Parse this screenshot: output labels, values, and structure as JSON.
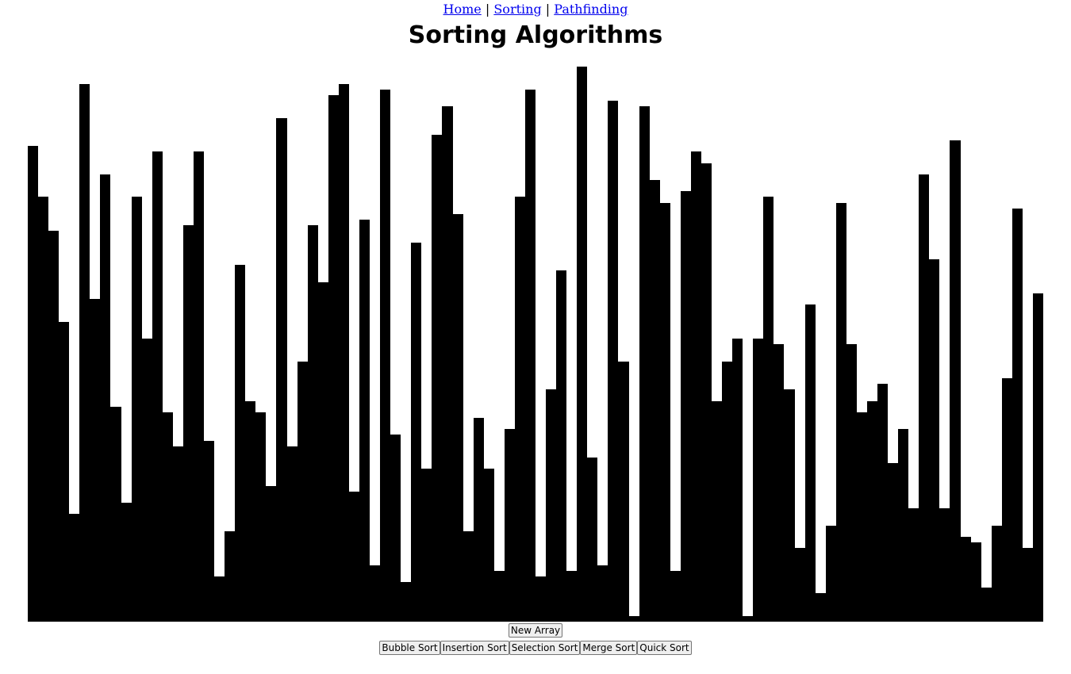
{
  "nav": {
    "home": "Home",
    "sorting": "Sorting",
    "pathfinding": "Pathfinding",
    "separator": "|"
  },
  "title": "Sorting Algorithms",
  "bar_color": "#000000",
  "chart_data": {
    "type": "bar",
    "max_value": 100,
    "values": [
      84,
      75,
      69,
      53,
      19,
      95,
      57,
      79,
      38,
      21,
      75,
      50,
      83,
      37,
      31,
      70,
      83,
      32,
      8,
      16,
      63,
      39,
      37,
      24,
      89,
      31,
      46,
      70,
      60,
      93,
      95,
      23,
      71,
      10,
      94,
      33,
      7,
      67,
      27,
      86,
      91,
      72,
      16,
      36,
      27,
      9,
      34,
      75,
      94,
      8,
      41,
      62,
      9,
      98,
      29,
      10,
      92,
      46,
      1,
      91,
      78,
      74,
      9,
      76,
      83,
      81,
      39,
      46,
      50,
      1,
      50,
      75,
      49,
      41,
      13,
      56,
      5,
      17,
      74,
      49,
      37,
      39,
      42,
      28,
      34,
      20,
      79,
      64,
      20,
      85,
      15,
      14,
      6,
      17,
      43,
      73,
      13,
      58
    ]
  },
  "controls": {
    "new_array": "New Array",
    "bubble_sort": "Bubble Sort",
    "insertion_sort": "Insertion Sort",
    "selection_sort": "Selection Sort",
    "merge_sort": "Merge Sort",
    "quick_sort": "Quick Sort"
  }
}
